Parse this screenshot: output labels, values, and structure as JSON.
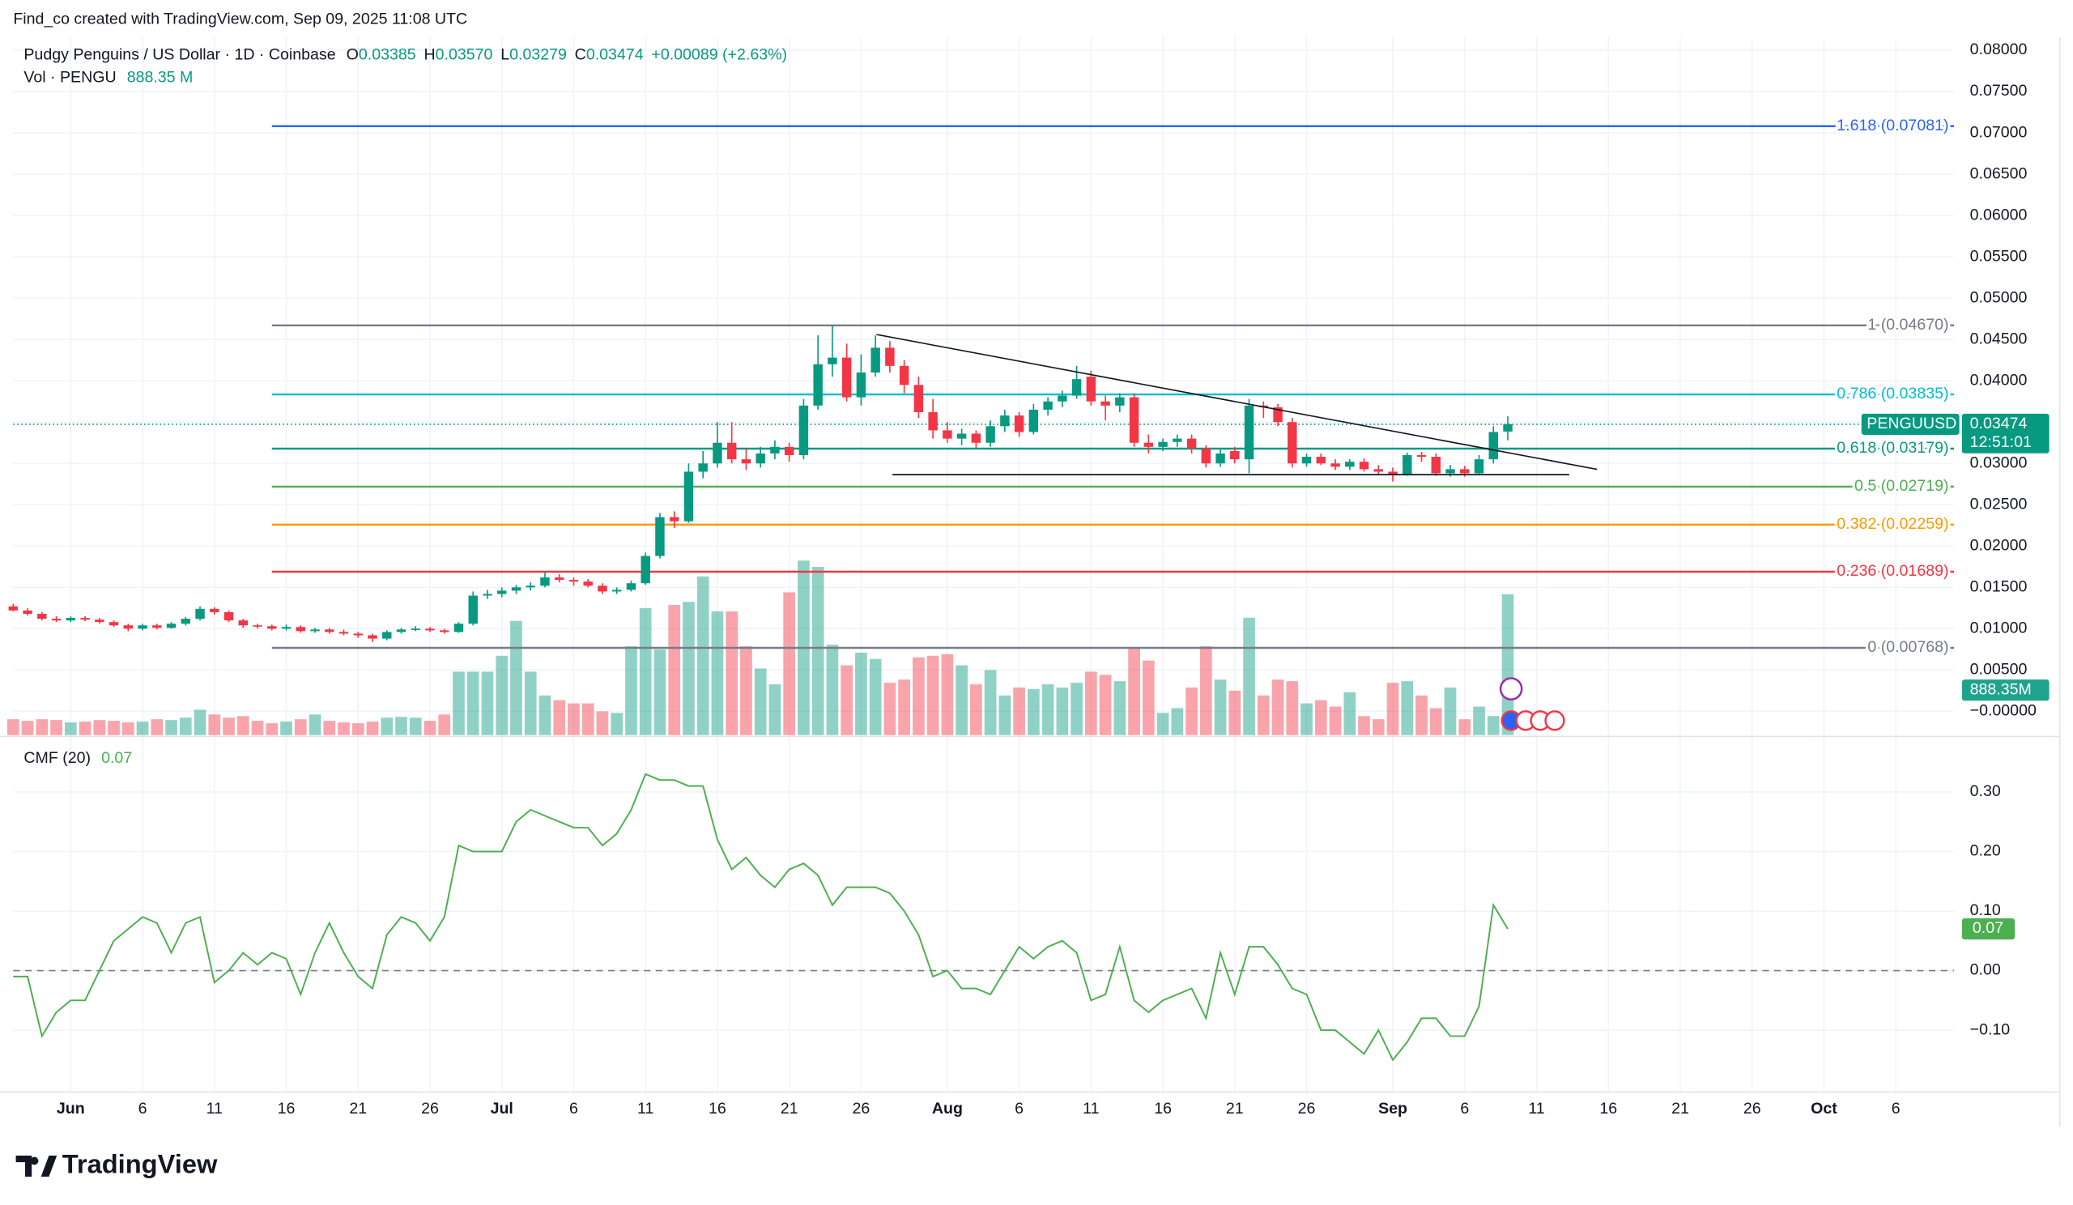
{
  "header": {
    "credit": "Find_co created with TradingView.com, Sep 09, 2025 11:08 UTC",
    "logo": "TradingView"
  },
  "chart_data": [
    {
      "type": "candlestick",
      "title": "Pudgy Penguins / US Dollar · 1D · Coinbase",
      "legend": [
        [
          "O",
          "0.03385"
        ],
        [
          "H",
          "0.03570"
        ],
        [
          "L",
          "0.03279"
        ],
        [
          "C",
          "0.03474"
        ]
      ],
      "change": "+0.00089 (+2.63%)",
      "volume_title": "Vol · PENGU",
      "volume_value": "888.35 M",
      "symbol": "PENGUUSD",
      "countdown": "12:51:01",
      "volume_badge": "888.35M",
      "up_color": "#089981",
      "down_color": "#f23645",
      "ylim": [
        -0.00288,
        0.0816
      ],
      "yticks": [
        {
          "value": 0.08,
          "label": "0.08000"
        },
        {
          "value": 0.075,
          "label": "0.07500"
        },
        {
          "value": 0.07,
          "label": "0.07000"
        },
        {
          "value": 0.065,
          "label": "0.06500"
        },
        {
          "value": 0.06,
          "label": "0.06000"
        },
        {
          "value": 0.055,
          "label": "0.05500"
        },
        {
          "value": 0.05,
          "label": "0.05000"
        },
        {
          "value": 0.045,
          "label": "0.04500"
        },
        {
          "value": 0.04,
          "label": "0.04000"
        },
        {
          "value": 0.035,
          "label": "0.03500"
        },
        {
          "value": 0.03,
          "label": "0.03000"
        },
        {
          "value": 0.025,
          "label": "0.02500"
        },
        {
          "value": 0.02,
          "label": "0.02000"
        },
        {
          "value": 0.015,
          "label": "0.01500"
        },
        {
          "value": 0.01,
          "label": "0.01000"
        },
        {
          "value": 0.005,
          "label": "0.00500"
        },
        {
          "value": 0,
          "label": "−0.00000"
        }
      ],
      "xticks": [
        "Jun",
        "6",
        "11",
        "16",
        "21",
        "26",
        "Jul",
        "6",
        "11",
        "16",
        "21",
        "26",
        "Aug",
        "6",
        "11",
        "16",
        "21",
        "26",
        "Sep",
        "6",
        "11",
        "16",
        "21",
        "26",
        "Oct",
        "6"
      ],
      "fib_levels": [
        {
          "label": "1.618 (0.07081)",
          "price": 0.07081,
          "color": "#2962ff"
        },
        {
          "label": "1 (0.04670)",
          "price": 0.0467,
          "color": "#787b86"
        },
        {
          "label": "0.786 (0.03835)",
          "price": 0.03835,
          "color": "#00bcd4"
        },
        {
          "label": "0.618 (0.03179)",
          "price": 0.03179,
          "color": "#089981"
        },
        {
          "label": "0.5 (0.02719)",
          "price": 0.02719,
          "color": "#4caf50"
        },
        {
          "label": "0.382 (0.02259)",
          "price": 0.02259,
          "color": "#ff9800"
        },
        {
          "label": "0.236 (0.01689)",
          "price": 0.01689,
          "color": "#f23645"
        },
        {
          "label": "0 (0.00768)",
          "price": 0.00768,
          "color": "#787b86"
        }
      ],
      "ohlc": [
        [
          0.0127,
          0.013,
          0.0121,
          0.0122
        ],
        [
          0.0122,
          0.0125,
          0.0116,
          0.0118
        ],
        [
          0.0118,
          0.012,
          0.011,
          0.0112
        ],
        [
          0.0112,
          0.0115,
          0.0108,
          0.011
        ],
        [
          0.011,
          0.0115,
          0.0108,
          0.0113
        ],
        [
          0.0113,
          0.0115,
          0.0109,
          0.0111
        ],
        [
          0.0111,
          0.0113,
          0.0106,
          0.0108
        ],
        [
          0.0108,
          0.011,
          0.0102,
          0.0104
        ],
        [
          0.0104,
          0.0106,
          0.0097,
          0.01
        ],
        [
          0.01,
          0.0106,
          0.0098,
          0.0104
        ],
        [
          0.0104,
          0.0106,
          0.0099,
          0.0101
        ],
        [
          0.0101,
          0.0108,
          0.01,
          0.0106
        ],
        [
          0.0106,
          0.0114,
          0.0104,
          0.0112
        ],
        [
          0.0112,
          0.0127,
          0.011,
          0.0124
        ],
        [
          0.0124,
          0.0126,
          0.0117,
          0.012
        ],
        [
          0.012,
          0.0122,
          0.0108,
          0.011
        ],
        [
          0.011,
          0.0112,
          0.0101,
          0.0104
        ],
        [
          0.0104,
          0.0106,
          0.01,
          0.0103
        ],
        [
          0.0103,
          0.0105,
          0.0098,
          0.01
        ],
        [
          0.01,
          0.0105,
          0.0098,
          0.0102
        ],
        [
          0.0102,
          0.0104,
          0.0095,
          0.0097
        ],
        [
          0.0097,
          0.0101,
          0.0095,
          0.0099
        ],
        [
          0.0099,
          0.0101,
          0.0094,
          0.0096
        ],
        [
          0.0096,
          0.0099,
          0.0092,
          0.0094
        ],
        [
          0.0094,
          0.0096,
          0.0089,
          0.0092
        ],
        [
          0.0092,
          0.0094,
          0.0084,
          0.0088
        ],
        [
          0.0088,
          0.0098,
          0.0086,
          0.0096
        ],
        [
          0.0096,
          0.0101,
          0.0094,
          0.0099
        ],
        [
          0.0099,
          0.0103,
          0.0097,
          0.01
        ],
        [
          0.01,
          0.0102,
          0.0096,
          0.0098
        ],
        [
          0.0098,
          0.01,
          0.0094,
          0.0096
        ],
        [
          0.0096,
          0.0108,
          0.0095,
          0.0106
        ],
        [
          0.0106,
          0.0145,
          0.0104,
          0.014
        ],
        [
          0.014,
          0.0147,
          0.0136,
          0.0142
        ],
        [
          0.0142,
          0.015,
          0.0138,
          0.0146
        ],
        [
          0.0146,
          0.0153,
          0.0142,
          0.015
        ],
        [
          0.015,
          0.0156,
          0.0146,
          0.0152
        ],
        [
          0.0152,
          0.0168,
          0.015,
          0.0162
        ],
        [
          0.0162,
          0.0166,
          0.0156,
          0.0159
        ],
        [
          0.0159,
          0.0162,
          0.0152,
          0.0157
        ],
        [
          0.0157,
          0.016,
          0.015,
          0.0152
        ],
        [
          0.0152,
          0.0155,
          0.0142,
          0.0145
        ],
        [
          0.0145,
          0.015,
          0.0142,
          0.0147
        ],
        [
          0.0147,
          0.0158,
          0.0145,
          0.0155
        ],
        [
          0.0155,
          0.0192,
          0.0153,
          0.0188
        ],
        [
          0.0188,
          0.024,
          0.0185,
          0.0235
        ],
        [
          0.0235,
          0.0242,
          0.0222,
          0.023
        ],
        [
          0.023,
          0.03,
          0.0228,
          0.029
        ],
        [
          0.029,
          0.0315,
          0.0282,
          0.03
        ],
        [
          0.03,
          0.035,
          0.0295,
          0.0325
        ],
        [
          0.0325,
          0.035,
          0.03,
          0.0305
        ],
        [
          0.0305,
          0.0318,
          0.0292,
          0.03
        ],
        [
          0.03,
          0.032,
          0.0295,
          0.0312
        ],
        [
          0.0312,
          0.0328,
          0.0305,
          0.032
        ],
        [
          0.032,
          0.0325,
          0.0302,
          0.031
        ],
        [
          0.031,
          0.0378,
          0.0305,
          0.037
        ],
        [
          0.037,
          0.0455,
          0.0365,
          0.042
        ],
        [
          0.042,
          0.0467,
          0.0405,
          0.0428
        ],
        [
          0.0428,
          0.0445,
          0.0375,
          0.038
        ],
        [
          0.038,
          0.0432,
          0.037,
          0.041
        ],
        [
          0.041,
          0.0455,
          0.0405,
          0.044
        ],
        [
          0.044,
          0.0448,
          0.041,
          0.0418
        ],
        [
          0.0418,
          0.0425,
          0.0385,
          0.0395
        ],
        [
          0.0395,
          0.0405,
          0.0355,
          0.0362
        ],
        [
          0.0362,
          0.0378,
          0.033,
          0.034
        ],
        [
          0.034,
          0.035,
          0.0325,
          0.033
        ],
        [
          0.033,
          0.0342,
          0.0322,
          0.0336
        ],
        [
          0.0336,
          0.034,
          0.0318,
          0.0325
        ],
        [
          0.0325,
          0.0352,
          0.032,
          0.0345
        ],
        [
          0.0345,
          0.0365,
          0.0338,
          0.0358
        ],
        [
          0.0358,
          0.0362,
          0.0332,
          0.0338
        ],
        [
          0.0338,
          0.0372,
          0.0335,
          0.0365
        ],
        [
          0.0365,
          0.038,
          0.0358,
          0.0375
        ],
        [
          0.0375,
          0.0388,
          0.0368,
          0.0382
        ],
        [
          0.0382,
          0.0418,
          0.0378,
          0.0402
        ],
        [
          0.0405,
          0.0412,
          0.037,
          0.0375
        ],
        [
          0.0375,
          0.0382,
          0.0352,
          0.037
        ],
        [
          0.037,
          0.0385,
          0.0362,
          0.038
        ],
        [
          0.038,
          0.0385,
          0.032,
          0.0325
        ],
        [
          0.0325,
          0.0335,
          0.0312,
          0.032
        ],
        [
          0.032,
          0.033,
          0.0315,
          0.0326
        ],
        [
          0.0326,
          0.0335,
          0.032,
          0.033
        ],
        [
          0.033,
          0.0335,
          0.0312,
          0.0318
        ],
        [
          0.0318,
          0.0322,
          0.0295,
          0.03
        ],
        [
          0.03,
          0.0318,
          0.0296,
          0.0312
        ],
        [
          0.0315,
          0.032,
          0.03,
          0.0305
        ],
        [
          0.0305,
          0.0378,
          0.0288,
          0.037
        ],
        [
          0.037,
          0.0375,
          0.0355,
          0.0368
        ],
        [
          0.0368,
          0.0372,
          0.0345,
          0.035
        ],
        [
          0.035,
          0.0355,
          0.0295,
          0.03
        ],
        [
          0.03,
          0.0312,
          0.0296,
          0.0308
        ],
        [
          0.0308,
          0.0312,
          0.0298,
          0.03
        ],
        [
          0.03,
          0.0305,
          0.0292,
          0.0296
        ],
        [
          0.0296,
          0.0305,
          0.0292,
          0.0302
        ],
        [
          0.0302,
          0.0306,
          0.029,
          0.0293
        ],
        [
          0.0293,
          0.0298,
          0.0286,
          0.029
        ],
        [
          0.029,
          0.0295,
          0.0278,
          0.0287
        ],
        [
          0.0287,
          0.0313,
          0.0285,
          0.031
        ],
        [
          0.031,
          0.0314,
          0.0302,
          0.0308
        ],
        [
          0.0308,
          0.0312,
          0.0285,
          0.0288
        ],
        [
          0.0288,
          0.0298,
          0.0284,
          0.0293
        ],
        [
          0.0293,
          0.0297,
          0.0284,
          0.0288
        ],
        [
          0.0288,
          0.031,
          0.0286,
          0.0305
        ],
        [
          0.0305,
          0.0345,
          0.03,
          0.0338
        ],
        [
          0.03385,
          0.0357,
          0.03279,
          0.03474
        ]
      ],
      "volume": [
        100,
        90,
        100,
        95,
        80,
        85,
        95,
        90,
        80,
        85,
        100,
        95,
        110,
        160,
        130,
        110,
        120,
        90,
        75,
        85,
        100,
        130,
        90,
        80,
        75,
        85,
        110,
        115,
        110,
        90,
        130,
        400,
        400,
        400,
        500,
        720,
        400,
        250,
        220,
        200,
        200,
        150,
        140,
        560,
        800,
        540,
        820,
        840,
        1000,
        780,
        780,
        560,
        420,
        320,
        900,
        1100,
        1060,
        570,
        440,
        520,
        480,
        330,
        350,
        490,
        500,
        510,
        440,
        320,
        410,
        250,
        300,
        290,
        320,
        300,
        330,
        400,
        380,
        340,
        550,
        470,
        140,
        170,
        300,
        560,
        350,
        280,
        740,
        250,
        350,
        340,
        200,
        220,
        180,
        270,
        120,
        100,
        330,
        340,
        250,
        170,
        300,
        100,
        180,
        120,
        888.35
      ]
    },
    {
      "type": "line",
      "title": "CMF (20)",
      "color": "#4caf50",
      "zero_line": 0,
      "ylim": [
        -0.204,
        0.391
      ],
      "yticks": [
        {
          "value": 0.3,
          "label": "0.30"
        },
        {
          "value": 0.2,
          "label": "0.20"
        },
        {
          "value": 0.1,
          "label": "0.10"
        },
        {
          "value": 0,
          "label": "0.00"
        },
        {
          "value": -0.1,
          "label": "−0.10"
        }
      ],
      "values": [
        -0.01,
        -0.01,
        -0.11,
        -0.07,
        -0.05,
        -0.05,
        0,
        0.05,
        0.07,
        0.09,
        0.08,
        0.03,
        0.08,
        0.09,
        -0.02,
        0,
        0.03,
        0.01,
        0.03,
        0.02,
        -0.04,
        0.03,
        0.08,
        0.03,
        -0.01,
        -0.03,
        0.06,
        0.09,
        0.08,
        0.05,
        0.09,
        0.21,
        0.2,
        0.2,
        0.2,
        0.25,
        0.27,
        0.26,
        0.25,
        0.24,
        0.24,
        0.21,
        0.23,
        0.27,
        0.33,
        0.32,
        0.32,
        0.31,
        0.31,
        0.22,
        0.17,
        0.19,
        0.16,
        0.14,
        0.17,
        0.18,
        0.16,
        0.11,
        0.14,
        0.14,
        0.14,
        0.13,
        0.1,
        0.06,
        -0.01,
        0,
        -0.03,
        -0.03,
        -0.04,
        0,
        0.04,
        0.02,
        0.04,
        0.05,
        0.03,
        -0.05,
        -0.04,
        0.04,
        -0.05,
        -0.07,
        -0.05,
        -0.04,
        -0.03,
        -0.08,
        0.03,
        -0.04,
        0.04,
        0.04,
        0.01,
        -0.03,
        -0.04,
        -0.1,
        -0.1,
        -0.12,
        -0.14,
        -0.1,
        -0.15,
        -0.12,
        -0.08,
        -0.08,
        -0.11,
        -0.11,
        -0.06,
        0.11,
        0.07
      ]
    }
  ]
}
